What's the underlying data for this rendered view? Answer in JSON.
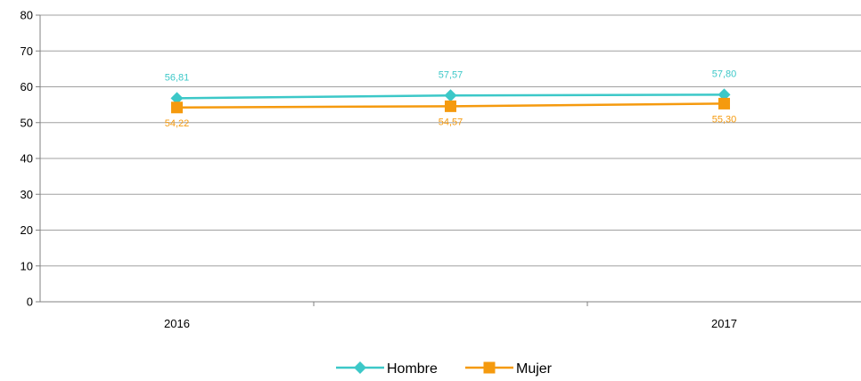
{
  "chart_data": {
    "type": "line",
    "categories": [
      "2016",
      "",
      "2017"
    ],
    "ylim": [
      0,
      80
    ],
    "yticks": [
      0,
      10,
      20,
      30,
      40,
      50,
      60,
      70,
      80
    ],
    "grid": true,
    "legend_position": "bottom",
    "series": [
      {
        "name": "Hombre",
        "values": [
          56.81,
          57.57,
          57.8
        ],
        "labels": [
          "56,81",
          "57,57",
          "57,80"
        ],
        "color": "#3CC8C8",
        "marker": "diamond"
      },
      {
        "name": "Mujer",
        "values": [
          54.22,
          54.57,
          55.3
        ],
        "labels": [
          "54,22",
          "54,57",
          "55,30"
        ],
        "color": "#F59A0E",
        "marker": "square"
      }
    ]
  }
}
